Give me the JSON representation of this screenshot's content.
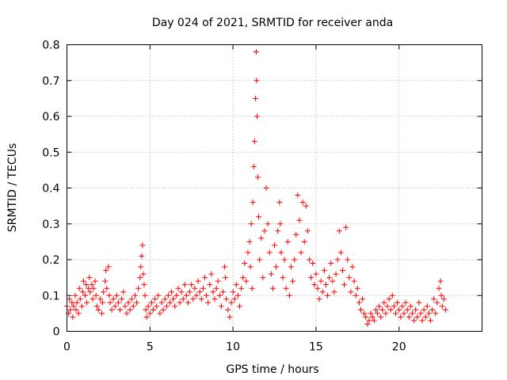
{
  "chart_data": {
    "type": "scatter",
    "title": "Day 024 of 2021, SRMTID for receiver anda",
    "xlabel": "GPS time / hours",
    "ylabel": "SRMTID / TECUs",
    "xlim": [
      0,
      25
    ],
    "ylim": [
      0,
      0.8
    ],
    "xticks": [
      "0",
      "5",
      "10",
      "15",
      "20"
    ],
    "xtick_values": [
      0,
      5,
      10,
      15,
      20
    ],
    "yticks": [
      "0",
      "0.1",
      "0.2",
      "0.3",
      "0.4",
      "0.5",
      "0.6",
      "0.7",
      "0.8"
    ],
    "ytick_values": [
      0,
      0.1,
      0.2,
      0.3,
      0.4,
      0.5,
      0.6,
      0.7,
      0.8
    ],
    "grid": true,
    "marker": "+",
    "color": "#ff0000",
    "series": [
      {
        "name": "SRMTID",
        "points": [
          [
            0.0,
            0.07
          ],
          [
            0.1,
            0.05
          ],
          [
            0.15,
            0.09
          ],
          [
            0.2,
            0.06
          ],
          [
            0.3,
            0.08
          ],
          [
            0.35,
            0.04
          ],
          [
            0.4,
            0.07
          ],
          [
            0.5,
            0.1
          ],
          [
            0.55,
            0.06
          ],
          [
            0.6,
            0.08
          ],
          [
            0.7,
            0.05
          ],
          [
            0.75,
            0.12
          ],
          [
            0.8,
            0.09
          ],
          [
            0.9,
            0.07
          ],
          [
            0.95,
            0.11
          ],
          [
            1.0,
            0.14
          ],
          [
            1.1,
            0.1
          ],
          [
            1.15,
            0.13
          ],
          [
            1.2,
            0.08
          ],
          [
            1.3,
            0.12
          ],
          [
            1.35,
            0.15
          ],
          [
            1.4,
            0.11
          ],
          [
            1.5,
            0.13
          ],
          [
            1.55,
            0.09
          ],
          [
            1.6,
            0.12
          ],
          [
            1.7,
            0.14
          ],
          [
            1.75,
            0.1
          ],
          [
            1.8,
            0.07
          ],
          [
            1.9,
            0.06
          ],
          [
            2.0,
            0.09
          ],
          [
            2.1,
            0.05
          ],
          [
            2.15,
            0.08
          ],
          [
            2.2,
            0.11
          ],
          [
            2.3,
            0.14
          ],
          [
            2.35,
            0.17
          ],
          [
            2.4,
            0.12
          ],
          [
            2.5,
            0.18
          ],
          [
            2.55,
            0.1
          ],
          [
            2.6,
            0.08
          ],
          [
            2.7,
            0.06
          ],
          [
            2.8,
            0.09
          ],
          [
            2.9,
            0.07
          ],
          [
            3.0,
            0.1
          ],
          [
            3.1,
            0.08
          ],
          [
            3.2,
            0.06
          ],
          [
            3.3,
            0.09
          ],
          [
            3.4,
            0.11
          ],
          [
            3.5,
            0.07
          ],
          [
            3.6,
            0.05
          ],
          [
            3.7,
            0.08
          ],
          [
            3.8,
            0.06
          ],
          [
            3.9,
            0.09
          ],
          [
            4.0,
            0.07
          ],
          [
            4.1,
            0.1
          ],
          [
            4.2,
            0.08
          ],
          [
            4.3,
            0.12
          ],
          [
            4.4,
            0.15
          ],
          [
            4.45,
            0.18
          ],
          [
            4.5,
            0.21
          ],
          [
            4.55,
            0.24
          ],
          [
            4.6,
            0.16
          ],
          [
            4.65,
            0.13
          ],
          [
            4.7,
            0.1
          ],
          [
            4.75,
            0.06
          ],
          [
            4.8,
            0.04
          ],
          [
            4.9,
            0.07
          ],
          [
            5.0,
            0.05
          ],
          [
            5.1,
            0.08
          ],
          [
            5.2,
            0.06
          ],
          [
            5.3,
            0.09
          ],
          [
            5.4,
            0.07
          ],
          [
            5.5,
            0.1
          ],
          [
            5.6,
            0.05
          ],
          [
            5.7,
            0.08
          ],
          [
            5.8,
            0.06
          ],
          [
            5.9,
            0.09
          ],
          [
            6.0,
            0.07
          ],
          [
            6.1,
            0.1
          ],
          [
            6.2,
            0.08
          ],
          [
            6.3,
            0.11
          ],
          [
            6.4,
            0.09
          ],
          [
            6.5,
            0.07
          ],
          [
            6.6,
            0.1
          ],
          [
            6.7,
            0.12
          ],
          [
            6.8,
            0.08
          ],
          [
            6.9,
            0.11
          ],
          [
            7.0,
            0.09
          ],
          [
            7.1,
            0.13
          ],
          [
            7.2,
            0.1
          ],
          [
            7.3,
            0.08
          ],
          [
            7.4,
            0.11
          ],
          [
            7.5,
            0.13
          ],
          [
            7.6,
            0.09
          ],
          [
            7.7,
            0.12
          ],
          [
            7.8,
            0.1
          ],
          [
            7.9,
            0.14
          ],
          [
            8.0,
            0.11
          ],
          [
            8.1,
            0.09
          ],
          [
            8.2,
            0.12
          ],
          [
            8.3,
            0.15
          ],
          [
            8.4,
            0.1
          ],
          [
            8.5,
            0.08
          ],
          [
            8.6,
            0.13
          ],
          [
            8.7,
            0.16
          ],
          [
            8.8,
            0.11
          ],
          [
            8.9,
            0.09
          ],
          [
            9.0,
            0.12
          ],
          [
            9.1,
            0.14
          ],
          [
            9.2,
            0.1
          ],
          [
            9.3,
            0.07
          ],
          [
            9.4,
            0.11
          ],
          [
            9.5,
            0.18
          ],
          [
            9.55,
            0.15
          ],
          [
            9.6,
            0.09
          ],
          [
            9.7,
            0.06
          ],
          [
            9.8,
            0.04
          ],
          [
            9.9,
            0.08
          ],
          [
            10.0,
            0.11
          ],
          [
            10.1,
            0.09
          ],
          [
            10.2,
            0.13
          ],
          [
            10.3,
            0.1
          ],
          [
            10.4,
            0.07
          ],
          [
            10.5,
            0.12
          ],
          [
            10.6,
            0.15
          ],
          [
            10.7,
            0.19
          ],
          [
            10.8,
            0.14
          ],
          [
            10.9,
            0.22
          ],
          [
            11.0,
            0.25
          ],
          [
            11.05,
            0.18
          ],
          [
            11.1,
            0.3
          ],
          [
            11.15,
            0.12
          ],
          [
            11.2,
            0.36
          ],
          [
            11.25,
            0.46
          ],
          [
            11.3,
            0.53
          ],
          [
            11.35,
            0.65
          ],
          [
            11.4,
            0.78
          ],
          [
            11.42,
            0.7
          ],
          [
            11.45,
            0.6
          ],
          [
            11.5,
            0.43
          ],
          [
            11.55,
            0.32
          ],
          [
            11.6,
            0.2
          ],
          [
            11.7,
            0.26
          ],
          [
            11.8,
            0.15
          ],
          [
            11.9,
            0.28
          ],
          [
            12.0,
            0.4
          ],
          [
            12.1,
            0.3
          ],
          [
            12.2,
            0.22
          ],
          [
            12.3,
            0.16
          ],
          [
            12.4,
            0.12
          ],
          [
            12.5,
            0.24
          ],
          [
            12.6,
            0.18
          ],
          [
            12.7,
            0.28
          ],
          [
            12.8,
            0.36
          ],
          [
            12.85,
            0.3
          ],
          [
            12.9,
            0.22
          ],
          [
            13.0,
            0.15
          ],
          [
            13.1,
            0.2
          ],
          [
            13.2,
            0.12
          ],
          [
            13.3,
            0.25
          ],
          [
            13.4,
            0.1
          ],
          [
            13.5,
            0.18
          ],
          [
            13.6,
            0.14
          ],
          [
            13.7,
            0.2
          ],
          [
            13.8,
            0.27
          ],
          [
            13.9,
            0.38
          ],
          [
            14.0,
            0.31
          ],
          [
            14.1,
            0.22
          ],
          [
            14.2,
            0.36
          ],
          [
            14.3,
            0.25
          ],
          [
            14.4,
            0.35
          ],
          [
            14.5,
            0.28
          ],
          [
            14.6,
            0.2
          ],
          [
            14.7,
            0.15
          ],
          [
            14.8,
            0.19
          ],
          [
            14.9,
            0.13
          ],
          [
            15.0,
            0.16
          ],
          [
            15.1,
            0.12
          ],
          [
            15.2,
            0.09
          ],
          [
            15.3,
            0.14
          ],
          [
            15.4,
            0.11
          ],
          [
            15.5,
            0.17
          ],
          [
            15.6,
            0.13
          ],
          [
            15.7,
            0.1
          ],
          [
            15.8,
            0.15
          ],
          [
            15.9,
            0.19
          ],
          [
            16.0,
            0.14
          ],
          [
            16.1,
            0.11
          ],
          [
            16.2,
            0.16
          ],
          [
            16.3,
            0.2
          ],
          [
            16.4,
            0.28
          ],
          [
            16.5,
            0.22
          ],
          [
            16.6,
            0.17
          ],
          [
            16.7,
            0.13
          ],
          [
            16.8,
            0.29
          ],
          [
            16.9,
            0.2
          ],
          [
            17.0,
            0.15
          ],
          [
            17.1,
            0.11
          ],
          [
            17.2,
            0.18
          ],
          [
            17.3,
            0.14
          ],
          [
            17.4,
            0.1
          ],
          [
            17.5,
            0.12
          ],
          [
            17.6,
            0.08
          ],
          [
            17.7,
            0.06
          ],
          [
            17.8,
            0.09
          ],
          [
            17.9,
            0.05
          ],
          [
            18.0,
            0.04
          ],
          [
            18.1,
            0.02
          ],
          [
            18.2,
            0.03
          ],
          [
            18.3,
            0.05
          ],
          [
            18.4,
            0.04
          ],
          [
            18.5,
            0.03
          ],
          [
            18.6,
            0.06
          ],
          [
            18.7,
            0.05
          ],
          [
            18.8,
            0.07
          ],
          [
            18.9,
            0.04
          ],
          [
            19.0,
            0.06
          ],
          [
            19.1,
            0.08
          ],
          [
            19.2,
            0.05
          ],
          [
            19.3,
            0.07
          ],
          [
            19.4,
            0.09
          ],
          [
            19.5,
            0.06
          ],
          [
            19.6,
            0.1
          ],
          [
            19.7,
            0.07
          ],
          [
            19.8,
            0.05
          ],
          [
            19.9,
            0.08
          ],
          [
            20.0,
            0.06
          ],
          [
            20.1,
            0.04
          ],
          [
            20.2,
            0.07
          ],
          [
            20.3,
            0.05
          ],
          [
            20.4,
            0.08
          ],
          [
            20.5,
            0.06
          ],
          [
            20.6,
            0.04
          ],
          [
            20.7,
            0.07
          ],
          [
            20.8,
            0.05
          ],
          [
            20.9,
            0.03
          ],
          [
            21.0,
            0.06
          ],
          [
            21.1,
            0.04
          ],
          [
            21.2,
            0.08
          ],
          [
            21.3,
            0.05
          ],
          [
            21.4,
            0.03
          ],
          [
            21.5,
            0.06
          ],
          [
            21.6,
            0.04
          ],
          [
            21.7,
            0.07
          ],
          [
            21.8,
            0.05
          ],
          [
            21.9,
            0.03
          ],
          [
            22.0,
            0.06
          ],
          [
            22.1,
            0.09
          ],
          [
            22.2,
            0.05
          ],
          [
            22.3,
            0.08
          ],
          [
            22.4,
            0.12
          ],
          [
            22.5,
            0.14
          ],
          [
            22.55,
            0.1
          ],
          [
            22.6,
            0.07
          ],
          [
            22.7,
            0.09
          ],
          [
            22.8,
            0.06
          ]
        ]
      }
    ]
  }
}
